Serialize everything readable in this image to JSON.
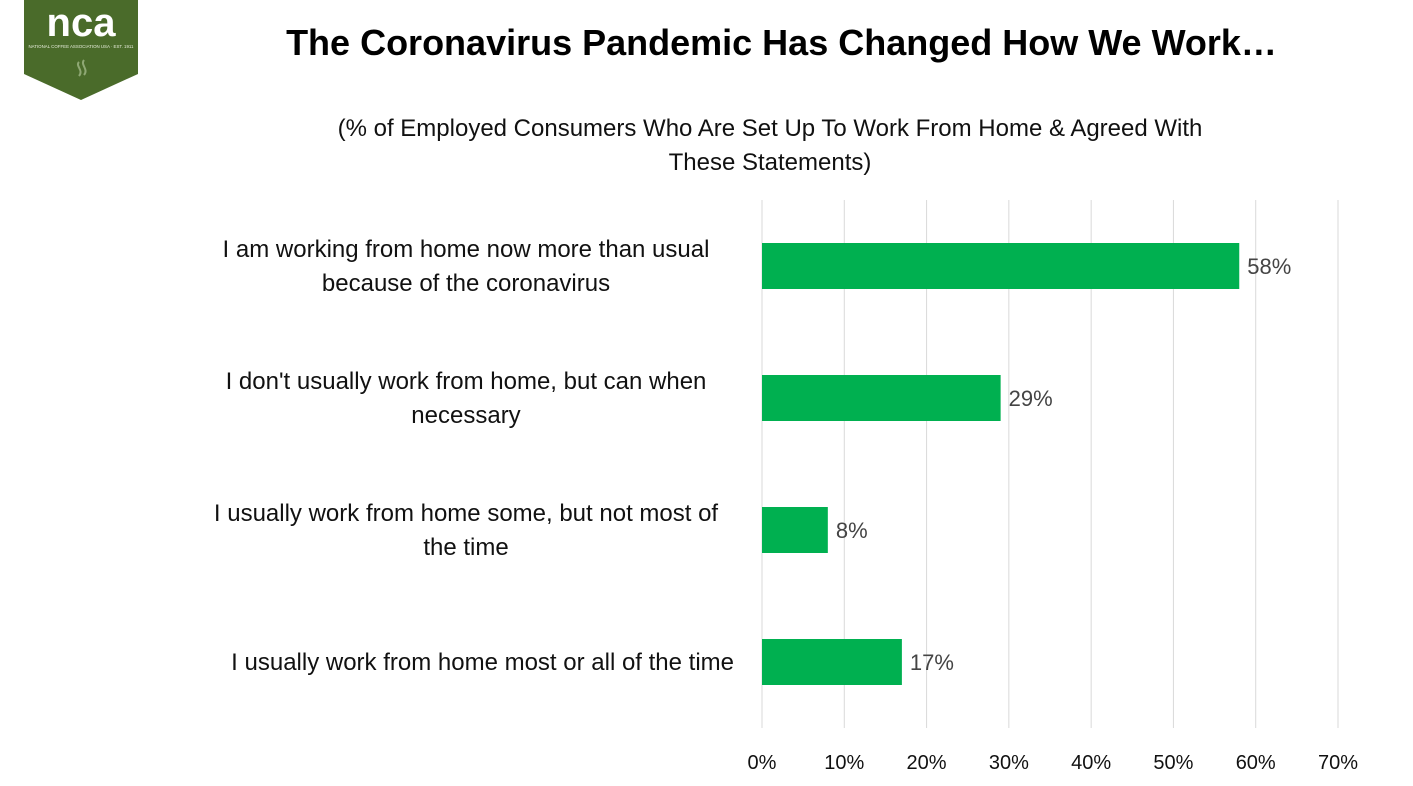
{
  "logo": {
    "text": "nca",
    "tagline": "NATIONAL COFFEE ASSOCIATION USA · EST. 1911",
    "color": "#4a6b2a"
  },
  "chart_data": {
    "type": "bar",
    "orientation": "horizontal",
    "title": "The Coronavirus Pandemic Has Changed How We Work…",
    "subtitle_lines": [
      "(% of Employed Consumers Who Are Set Up To Work From Home & Agreed With",
      "These Statements)"
    ],
    "categories": [
      [
        "I am working from home now more than usual",
        "because of the coronavirus"
      ],
      [
        "I don't usually work from home, but can when",
        "necessary"
      ],
      [
        "I usually work from home some, but not most of",
        "the time"
      ],
      [
        "I usually work from home most or all of the time"
      ]
    ],
    "values": [
      58,
      29,
      8,
      17
    ],
    "value_labels": [
      "58%",
      "29%",
      "8%",
      "17%"
    ],
    "xlim": [
      0,
      70
    ],
    "ticks": [
      0,
      10,
      20,
      30,
      40,
      50,
      60,
      70
    ],
    "tick_labels": [
      "0%",
      "10%",
      "20%",
      "30%",
      "40%",
      "50%",
      "60%",
      "70%"
    ],
    "grid": true,
    "bar_color": "#00b050",
    "legend": "none"
  }
}
